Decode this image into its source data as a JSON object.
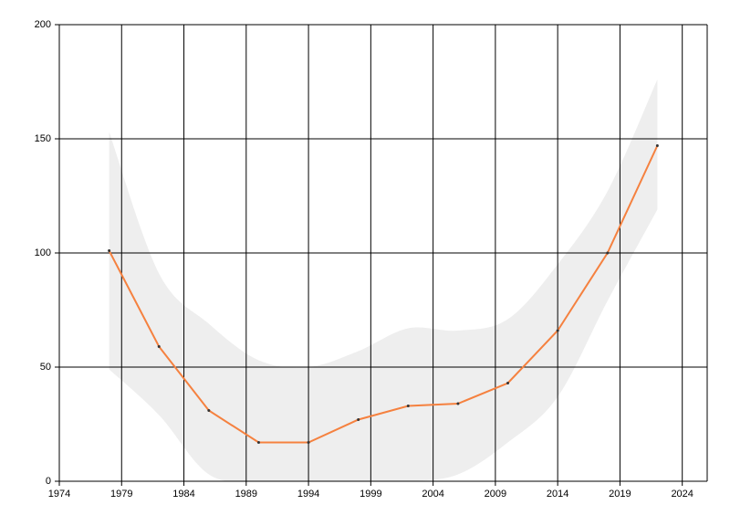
{
  "chart_data": {
    "type": "line",
    "x": [
      1978,
      1982,
      1986,
      1990,
      1994,
      1998,
      2002,
      2006,
      2010,
      2014,
      2018,
      2022
    ],
    "values": [
      101,
      59,
      31,
      17,
      17,
      27,
      33,
      34,
      43,
      66,
      100,
      147
    ],
    "color": "#f5813f",
    "marker_color": "#333333",
    "band_upper": [
      153,
      91,
      69,
      53,
      50,
      57,
      67,
      66,
      71,
      95,
      127,
      176
    ],
    "band_lower": [
      49,
      29,
      3,
      0,
      0,
      0,
      0,
      3,
      17,
      37,
      79,
      119
    ],
    "band_color": "#eeeeee",
    "xlim": [
      1974,
      2026
    ],
    "xticks": [
      1974,
      1979,
      1984,
      1989,
      1994,
      1999,
      2004,
      2009,
      2014,
      2019,
      2024
    ],
    "ylim": [
      0,
      200
    ],
    "yticks": [
      0,
      50,
      100,
      150,
      200
    ],
    "grid": true
  }
}
